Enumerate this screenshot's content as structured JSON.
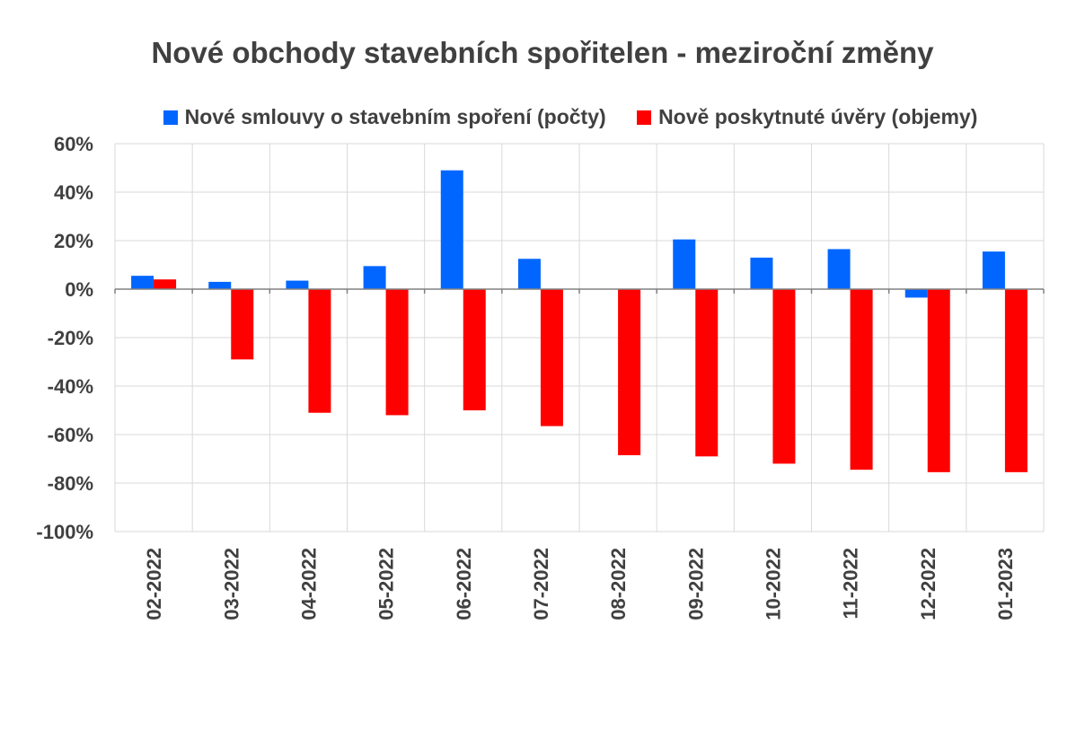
{
  "chart_data": {
    "type": "bar",
    "title": "Nové obchody stavebních spořitelen - meziroční změny",
    "categories": [
      "02-2022",
      "03-2022",
      "04-2022",
      "05-2022",
      "06-2022",
      "07-2022",
      "08-2022",
      "09-2022",
      "10-2022",
      "11-2022",
      "12-2022",
      "01-2023"
    ],
    "series": [
      {
        "name": "Nové smlouvy o stavebním spoření (počty)",
        "color": "#0066ff",
        "values": [
          5.5,
          3,
          3.5,
          9.5,
          49,
          12.5,
          0,
          20.5,
          13,
          16.5,
          -3.5,
          15.5
        ]
      },
      {
        "name": "Nově poskytnuté úvěry (objemy)",
        "color": "#ff0000",
        "values": [
          4,
          -29,
          -51,
          -52,
          -50,
          -56.5,
          -68.5,
          -69,
          -72,
          -74.5,
          -75.5,
          -75.5
        ]
      }
    ],
    "ylim": [
      -100,
      60
    ],
    "yticks": [
      60,
      40,
      20,
      0,
      -20,
      -40,
      -60,
      -80,
      -100
    ],
    "ytick_labels": [
      "60%",
      "40%",
      "20%",
      "0%",
      "-20%",
      "-40%",
      "-60%",
      "-80%",
      "-100%"
    ],
    "xlabel": "",
    "ylabel": "",
    "grid": true,
    "legend_position": "top"
  }
}
